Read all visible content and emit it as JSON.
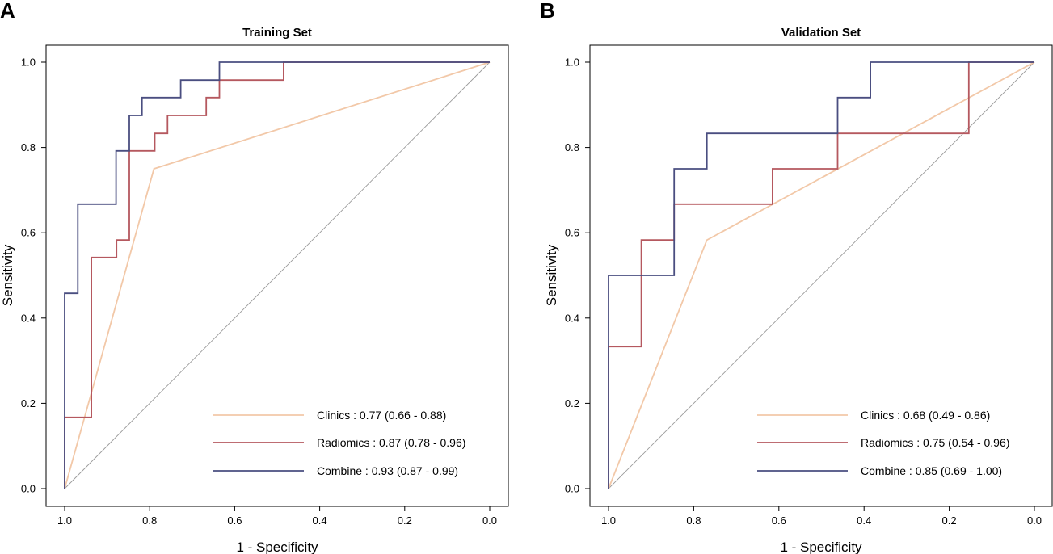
{
  "chart_data": [
    {
      "panel": "A",
      "type": "line",
      "title": "Training Set",
      "xlabel": "1 - Specificity",
      "ylabel": "Sensitivity",
      "xlim": [
        1.0,
        0.0
      ],
      "ylim": [
        0.0,
        1.0
      ],
      "xticks": [
        "1.0",
        "0.8",
        "0.6",
        "0.4",
        "0.2",
        "0.0"
      ],
      "yticks": [
        "0.0",
        "0.2",
        "0.4",
        "0.6",
        "0.8",
        "1.0"
      ],
      "diagonal_reference": true,
      "legend_position": "bottom-right",
      "series": [
        {
          "name": "Clinics",
          "legend": "Clinics : 0.77 (0.66 - 0.88)",
          "color": "#F2C8A8",
          "points": [
            [
              1.0,
              0.0
            ],
            [
              0.79,
              0.75
            ],
            [
              0.0,
              1.0
            ]
          ]
        },
        {
          "name": "Radiomics",
          "legend": "Radiomics : 0.87 (0.78 - 0.96)",
          "color": "#B5585F",
          "points": [
            [
              1.0,
              0.0
            ],
            [
              1.0,
              0.167
            ],
            [
              0.937,
              0.167
            ],
            [
              0.937,
              0.542
            ],
            [
              0.878,
              0.542
            ],
            [
              0.878,
              0.583
            ],
            [
              0.848,
              0.583
            ],
            [
              0.848,
              0.792
            ],
            [
              0.788,
              0.792
            ],
            [
              0.788,
              0.833
            ],
            [
              0.758,
              0.833
            ],
            [
              0.758,
              0.875
            ],
            [
              0.667,
              0.875
            ],
            [
              0.667,
              0.917
            ],
            [
              0.636,
              0.917
            ],
            [
              0.636,
              0.958
            ],
            [
              0.485,
              0.958
            ],
            [
              0.485,
              1.0
            ],
            [
              0.0,
              1.0
            ]
          ]
        },
        {
          "name": "Combine",
          "legend": "Combine : 0.93 (0.87 - 0.99)",
          "color": "#4A4E80",
          "points": [
            [
              1.0,
              0.0
            ],
            [
              1.0,
              0.458
            ],
            [
              0.969,
              0.458
            ],
            [
              0.969,
              0.667
            ],
            [
              0.879,
              0.667
            ],
            [
              0.879,
              0.792
            ],
            [
              0.848,
              0.792
            ],
            [
              0.848,
              0.875
            ],
            [
              0.818,
              0.875
            ],
            [
              0.818,
              0.917
            ],
            [
              0.727,
              0.917
            ],
            [
              0.727,
              0.958
            ],
            [
              0.636,
              0.958
            ],
            [
              0.636,
              1.0
            ],
            [
              0.0,
              1.0
            ]
          ]
        }
      ]
    },
    {
      "panel": "B",
      "type": "line",
      "title": "Validation Set",
      "xlabel": "1 - Specificity",
      "ylabel": "Sensitivity",
      "xlim": [
        1.0,
        0.0
      ],
      "ylim": [
        0.0,
        1.0
      ],
      "xticks": [
        "1.0",
        "0.8",
        "0.6",
        "0.4",
        "0.2",
        "0.0"
      ],
      "yticks": [
        "0.0",
        "0.2",
        "0.4",
        "0.6",
        "0.8",
        "1.0"
      ],
      "diagonal_reference": true,
      "legend_position": "bottom-right",
      "series": [
        {
          "name": "Clinics",
          "legend": "Clinics : 0.68 (0.49 - 0.86)",
          "color": "#F2C8A8",
          "points": [
            [
              1.0,
              0.0
            ],
            [
              0.769,
              0.583
            ],
            [
              0.0,
              1.0
            ]
          ]
        },
        {
          "name": "Radiomics",
          "legend": "Radiomics : 0.75 (0.54 - 0.96)",
          "color": "#B5585F",
          "points": [
            [
              1.0,
              0.0
            ],
            [
              1.0,
              0.333
            ],
            [
              0.923,
              0.333
            ],
            [
              0.923,
              0.583
            ],
            [
              0.846,
              0.583
            ],
            [
              0.846,
              0.667
            ],
            [
              0.615,
              0.667
            ],
            [
              0.615,
              0.75
            ],
            [
              0.462,
              0.75
            ],
            [
              0.462,
              0.833
            ],
            [
              0.154,
              0.833
            ],
            [
              0.154,
              1.0
            ],
            [
              0.0,
              1.0
            ]
          ]
        },
        {
          "name": "Combine",
          "legend": "Combine : 0.85 (0.69 - 1.00)",
          "color": "#4A4E80",
          "points": [
            [
              1.0,
              0.0
            ],
            [
              1.0,
              0.5
            ],
            [
              0.846,
              0.5
            ],
            [
              0.846,
              0.75
            ],
            [
              0.769,
              0.75
            ],
            [
              0.769,
              0.833
            ],
            [
              0.462,
              0.833
            ],
            [
              0.462,
              0.917
            ],
            [
              0.385,
              0.917
            ],
            [
              0.385,
              1.0
            ],
            [
              0.0,
              1.0
            ]
          ]
        }
      ]
    }
  ]
}
